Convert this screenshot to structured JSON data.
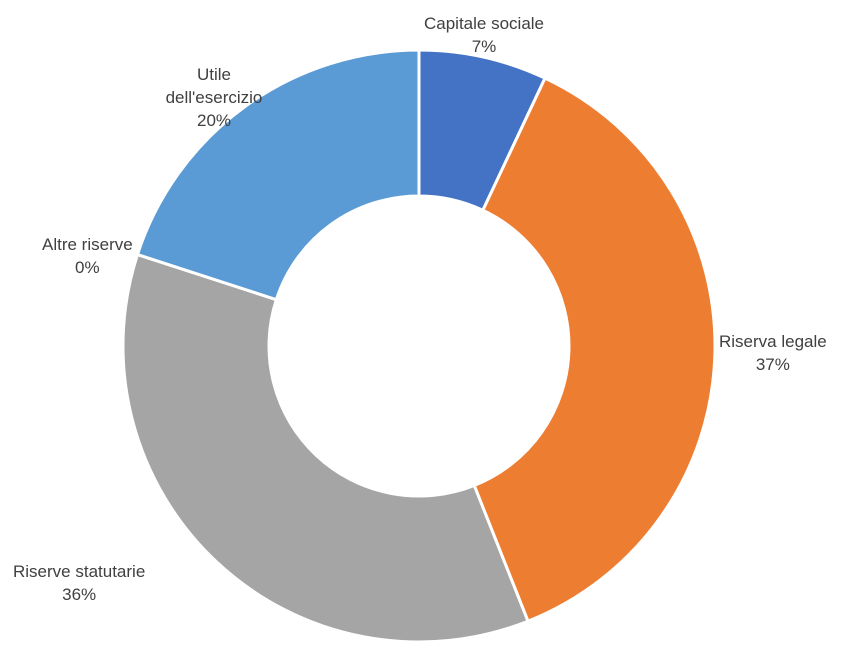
{
  "chart_data": {
    "type": "pie",
    "variant": "doughnut",
    "title": "",
    "slices": [
      {
        "name": "Capitale sociale",
        "value": 7,
        "value_label": "7%",
        "color": "#4472C4"
      },
      {
        "name": "Riserva legale",
        "value": 37,
        "value_label": "37%",
        "color": "#ED7D31"
      },
      {
        "name": "Riserve statutarie",
        "value": 36,
        "value_label": "36%",
        "color": "#A5A5A5"
      },
      {
        "name": "Altre riserve",
        "value": 0,
        "value_label": "0%",
        "color": "#FFC000"
      },
      {
        "name": "Utile dell'esercizio",
        "value": 20,
        "value_label": "20%",
        "color": "#5B9BD5"
      }
    ],
    "legend": "none"
  },
  "labels": {
    "capitale_name": "Capitale sociale",
    "capitale_pct": "7%",
    "legale_name": "Riserva legale",
    "legale_pct": "37%",
    "statutarie_name": "Riserve statutarie",
    "statutarie_pct": "36%",
    "altre_name": "Altre riserve",
    "altre_pct": "0%",
    "utile_name_line1": "Utile",
    "utile_name_line2": "dell'esercizio",
    "utile_pct": "20%"
  }
}
